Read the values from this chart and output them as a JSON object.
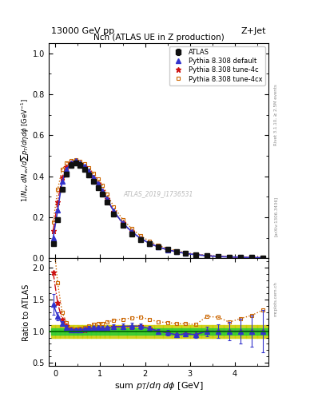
{
  "title_left": "13000 GeV pp",
  "title_right": "Z+Jet",
  "plot_title": "Nch (ATLAS UE in Z production)",
  "xlabel": "sum p_{T}/d\\eta d\\phi [GeV]",
  "ylabel": "1/N_{ev} dN_{ev}/dsum p_{T}/d\\eta d\\phi [GeV^{-1}]",
  "ylabel_ratio": "Ratio to ATLAS",
  "watermark": "ATLAS_2019_I1736531",
  "rivet_text": "Rivet 3.1.10, ≥ 2.5M events",
  "arxiv_text": "[arXiv:1306.3436]",
  "mcplots_text": "mcplots.cern.ch",
  "atlas_x": [
    -0.05,
    0.05,
    0.15,
    0.25,
    0.35,
    0.45,
    0.55,
    0.65,
    0.75,
    0.85,
    0.95,
    1.05,
    1.15,
    1.3,
    1.5,
    1.7,
    1.9,
    2.1,
    2.3,
    2.5,
    2.7,
    2.9,
    3.125,
    3.375,
    3.625,
    3.875,
    4.125,
    4.375,
    4.625
  ],
  "atlas_y": [
    0.07,
    0.19,
    0.335,
    0.41,
    0.455,
    0.465,
    0.455,
    0.435,
    0.405,
    0.375,
    0.345,
    0.315,
    0.275,
    0.215,
    0.16,
    0.12,
    0.09,
    0.07,
    0.055,
    0.043,
    0.034,
    0.025,
    0.019,
    0.013,
    0.009,
    0.007,
    0.005,
    0.004,
    0.003
  ],
  "atlas_yerr": [
    0.008,
    0.01,
    0.012,
    0.012,
    0.012,
    0.012,
    0.012,
    0.011,
    0.011,
    0.01,
    0.01,
    0.009,
    0.008,
    0.007,
    0.006,
    0.005,
    0.004,
    0.003,
    0.002,
    0.002,
    0.001,
    0.001,
    0.001,
    0.001,
    0.001,
    0.001,
    0.001,
    0.001,
    0.001
  ],
  "pythia_default_x": [
    -0.05,
    0.05,
    0.15,
    0.25,
    0.35,
    0.45,
    0.55,
    0.65,
    0.75,
    0.85,
    0.95,
    1.05,
    1.15,
    1.3,
    1.5,
    1.7,
    1.9,
    2.1,
    2.3,
    2.5,
    2.7,
    2.9,
    3.125,
    3.375,
    3.625,
    3.875,
    4.125,
    4.375,
    4.625
  ],
  "pythia_default_y": [
    0.1,
    0.235,
    0.375,
    0.435,
    0.465,
    0.475,
    0.465,
    0.45,
    0.425,
    0.395,
    0.365,
    0.33,
    0.29,
    0.23,
    0.172,
    0.13,
    0.097,
    0.073,
    0.055,
    0.042,
    0.032,
    0.024,
    0.018,
    0.013,
    0.009,
    0.007,
    0.005,
    0.004,
    0.003
  ],
  "pythia_4c_x": [
    -0.05,
    0.05,
    0.15,
    0.25,
    0.35,
    0.45,
    0.55,
    0.65,
    0.75,
    0.85,
    0.95,
    1.05,
    1.15,
    1.3,
    1.5,
    1.7,
    1.9,
    2.1,
    2.3,
    2.5,
    2.7,
    2.9,
    3.125,
    3.375,
    3.625,
    3.875,
    4.125,
    4.375,
    4.625
  ],
  "pythia_4c_y": [
    0.135,
    0.275,
    0.395,
    0.445,
    0.465,
    0.472,
    0.462,
    0.445,
    0.421,
    0.392,
    0.362,
    0.328,
    0.289,
    0.229,
    0.171,
    0.129,
    0.097,
    0.073,
    0.055,
    0.042,
    0.032,
    0.024,
    0.018,
    0.013,
    0.009,
    0.007,
    0.005,
    0.004,
    0.003
  ],
  "pythia_4cx_x": [
    -0.05,
    0.05,
    0.15,
    0.25,
    0.35,
    0.45,
    0.55,
    0.65,
    0.75,
    0.85,
    0.95,
    1.05,
    1.15,
    1.3,
    1.5,
    1.7,
    1.9,
    2.1,
    2.3,
    2.5,
    2.7,
    2.9,
    3.125,
    3.375,
    3.625,
    3.875,
    4.125,
    4.375,
    4.625
  ],
  "pythia_4cx_y": [
    0.175,
    0.335,
    0.435,
    0.465,
    0.478,
    0.482,
    0.474,
    0.46,
    0.44,
    0.415,
    0.388,
    0.355,
    0.315,
    0.252,
    0.19,
    0.145,
    0.11,
    0.083,
    0.063,
    0.049,
    0.038,
    0.028,
    0.021,
    0.016,
    0.011,
    0.008,
    0.006,
    0.005,
    0.004
  ],
  "atlas_xedges": [
    -0.1,
    0.0,
    0.1,
    0.2,
    0.3,
    0.4,
    0.5,
    0.6,
    0.7,
    0.8,
    0.9,
    1.0,
    1.1,
    1.2,
    1.4,
    1.6,
    1.8,
    2.0,
    2.2,
    2.4,
    2.6,
    2.8,
    3.0,
    3.25,
    3.5,
    3.75,
    4.0,
    4.25,
    4.5,
    4.75
  ],
  "green_band_inner": 0.05,
  "yellow_band_outer": 0.1,
  "xlim": [
    -0.15,
    4.75
  ],
  "ylim_main": [
    0.0,
    1.05
  ],
  "ylim_ratio": [
    0.45,
    2.15
  ],
  "color_atlas": "#111111",
  "color_default": "#3333cc",
  "color_4c": "#cc1111",
  "color_4cx": "#cc6600",
  "color_green": "#33cc33",
  "color_yellow": "#cccc00"
}
